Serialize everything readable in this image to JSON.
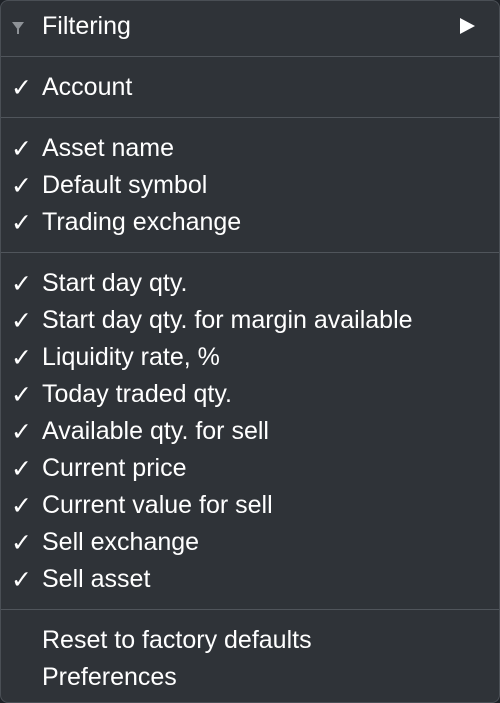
{
  "check_glyph": "✓",
  "filtering": {
    "label": "Filtering"
  },
  "group1": {
    "items": [
      {
        "label": "Account",
        "checked": true
      }
    ]
  },
  "group2": {
    "items": [
      {
        "label": "Asset name",
        "checked": true
      },
      {
        "label": "Default symbol",
        "checked": true
      },
      {
        "label": "Trading exchange",
        "checked": true
      }
    ]
  },
  "group3": {
    "items": [
      {
        "label": "Start day qty.",
        "checked": true
      },
      {
        "label": "Start day qty. for margin available",
        "checked": true
      },
      {
        "label": "Liquidity rate, %",
        "checked": true
      },
      {
        "label": "Today traded qty.",
        "checked": true
      },
      {
        "label": "Available qty. for sell",
        "checked": true
      },
      {
        "label": "Current price",
        "checked": true
      },
      {
        "label": "Current value for sell",
        "checked": true
      },
      {
        "label": "Sell exchange",
        "checked": true
      },
      {
        "label": "Sell asset",
        "checked": true
      }
    ]
  },
  "actions": {
    "reset_label": "Reset to factory defaults",
    "preferences_label": "Preferences"
  },
  "colors": {
    "menu_background": "#2f3338",
    "separator": "#50555b",
    "text": "#ffffff",
    "filter_icon": "#8e9297"
  },
  "icons": {
    "filter": "funnel-icon",
    "submenu": "submenu-arrow-icon",
    "check": "checkmark-icon"
  }
}
